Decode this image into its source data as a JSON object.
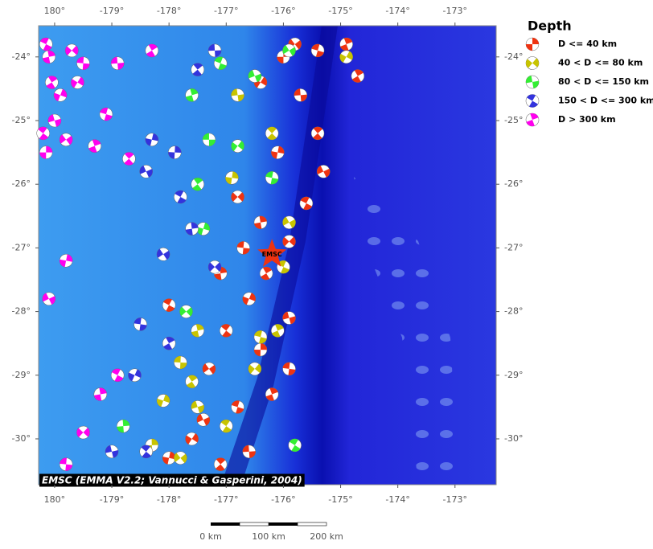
{
  "map": {
    "xlim": [
      179.72,
      -172.28
    ],
    "ylim": [
      -23.51,
      -30.72
    ],
    "xticks": [
      {
        "value": 180,
        "label": "180°"
      },
      {
        "value": -179,
        "label": "-179°"
      },
      {
        "value": -178,
        "label": "-178°"
      },
      {
        "value": -177,
        "label": "-177°"
      },
      {
        "value": -176,
        "label": "-176°"
      },
      {
        "value": -175,
        "label": "-175°"
      },
      {
        "value": -174,
        "label": "-174°"
      },
      {
        "value": -173,
        "label": "-173°"
      }
    ],
    "yticks": [
      {
        "value": -24,
        "label": "-24°"
      },
      {
        "value": -25,
        "label": "-25°"
      },
      {
        "value": -26,
        "label": "-26°"
      },
      {
        "value": -27,
        "label": "-27°"
      },
      {
        "value": -28,
        "label": "-28°"
      },
      {
        "value": -29,
        "label": "-29°"
      },
      {
        "value": -30,
        "label": "-30°"
      }
    ],
    "epicenter": {
      "label": "EMSC",
      "lon": -176.2,
      "lat": -27.1
    },
    "credit": "EMSC (EMMA V2.2; Vannucci & Gasperini, 2004)",
    "scale": [
      "0 km",
      "100 km",
      "200 km"
    ]
  },
  "legend": {
    "title": "Depth",
    "entries": [
      {
        "label": "D <= 40 km",
        "color": "#ee3311",
        "events": [
          [
            -176,
            -24.0
          ],
          [
            -175.8,
            -23.8
          ],
          [
            -175.4,
            -23.9
          ],
          [
            -174.9,
            -23.8
          ],
          [
            -176.4,
            -24.4
          ],
          [
            -175.7,
            -24.6
          ],
          [
            -175.4,
            -25.2
          ],
          [
            -176.1,
            -25.5
          ],
          [
            -175.3,
            -25.8
          ],
          [
            -175.6,
            -26.3
          ],
          [
            -176.4,
            -26.6
          ],
          [
            -175.9,
            -26.9
          ],
          [
            -176.7,
            -27.0
          ],
          [
            -176.3,
            -27.4
          ],
          [
            -176.6,
            -27.8
          ],
          [
            -175.9,
            -28.1
          ],
          [
            -177.0,
            -28.3
          ],
          [
            -176.4,
            -28.6
          ],
          [
            -177.3,
            -28.9
          ],
          [
            -176.8,
            -29.5
          ],
          [
            -176.2,
            -29.3
          ],
          [
            -177.6,
            -30.0
          ],
          [
            -176.6,
            -30.2
          ],
          [
            -177.1,
            -30.4
          ],
          [
            -178.0,
            -30.3
          ],
          [
            -177.4,
            -29.7
          ],
          [
            -178.0,
            -27.9
          ],
          [
            -177.1,
            -27.4
          ],
          [
            -176.8,
            -26.2
          ],
          [
            -175.9,
            -28.9
          ],
          [
            -174.7,
            -24.3
          ]
        ]
      },
      {
        "label": "40 < D <= 80 km",
        "color": "#c8c400",
        "events": [
          [
            -174.9,
            -24.0
          ],
          [
            -176.8,
            -24.6
          ],
          [
            -176.2,
            -25.2
          ],
          [
            -176.9,
            -25.9
          ],
          [
            -175.9,
            -26.6
          ],
          [
            -176.0,
            -27.3
          ],
          [
            -177.5,
            -28.3
          ],
          [
            -176.5,
            -28.9
          ],
          [
            -177.8,
            -28.8
          ],
          [
            -177.6,
            -29.1
          ],
          [
            -178.1,
            -29.4
          ],
          [
            -177.5,
            -29.5
          ],
          [
            -177.0,
            -29.8
          ],
          [
            -178.3,
            -30.1
          ],
          [
            -177.8,
            -30.3
          ],
          [
            -176.4,
            -28.4
          ],
          [
            -176.1,
            -28.3
          ]
        ]
      },
      {
        "label": "80 < D <= 150 km",
        "color": "#33ee33",
        "events": [
          [
            -175.9,
            -23.9
          ],
          [
            -177.1,
            -24.1
          ],
          [
            -177.6,
            -24.6
          ],
          [
            -176.8,
            -25.4
          ],
          [
            -177.3,
            -25.3
          ],
          [
            -177.5,
            -26.0
          ],
          [
            -177.4,
            -26.7
          ],
          [
            -176.5,
            -24.3
          ],
          [
            -175.8,
            -30.1
          ],
          [
            -178.8,
            -29.8
          ],
          [
            -177.7,
            -28.0
          ],
          [
            -176.2,
            -25.9
          ]
        ]
      },
      {
        "label": "150 < D <= 300 km",
        "color": "#3333dd",
        "events": [
          [
            -177.2,
            -23.9
          ],
          [
            -177.5,
            -24.2
          ],
          [
            -178.3,
            -25.3
          ],
          [
            -178.4,
            -25.8
          ],
          [
            -177.8,
            -26.2
          ],
          [
            -177.6,
            -26.7
          ],
          [
            -177.2,
            -27.3
          ],
          [
            -178.5,
            -28.2
          ],
          [
            -178.0,
            -28.5
          ],
          [
            -178.6,
            -29.0
          ],
          [
            -179.0,
            -30.2
          ],
          [
            -178.4,
            -30.2
          ],
          [
            -177.9,
            -25.5
          ],
          [
            -178.1,
            -27.1
          ]
        ]
      },
      {
        "label": "D > 300 km",
        "color": "#ff00ee",
        "events": [
          [
            179.85,
            -23.8
          ],
          [
            179.9,
            -24.0
          ],
          [
            -179.7,
            -23.9
          ],
          [
            -179.5,
            -24.1
          ],
          [
            179.95,
            -24.4
          ],
          [
            -179.9,
            -24.6
          ],
          [
            180,
            -25.0
          ],
          [
            179.8,
            -25.2
          ],
          [
            179.85,
            -25.5
          ],
          [
            -179.8,
            -25.3
          ],
          [
            -179.1,
            -24.9
          ],
          [
            -179.3,
            -25.4
          ],
          [
            -179.6,
            -24.4
          ],
          [
            -178.9,
            -24.1
          ],
          [
            -178.7,
            -25.6
          ],
          [
            -179.8,
            -27.2
          ],
          [
            179.9,
            -27.8
          ],
          [
            -178.9,
            -29.0
          ],
          [
            -179.2,
            -29.3
          ],
          [
            -179.5,
            -29.9
          ],
          [
            -179.8,
            -30.4
          ],
          [
            -178.3,
            -23.9
          ]
        ]
      }
    ]
  }
}
